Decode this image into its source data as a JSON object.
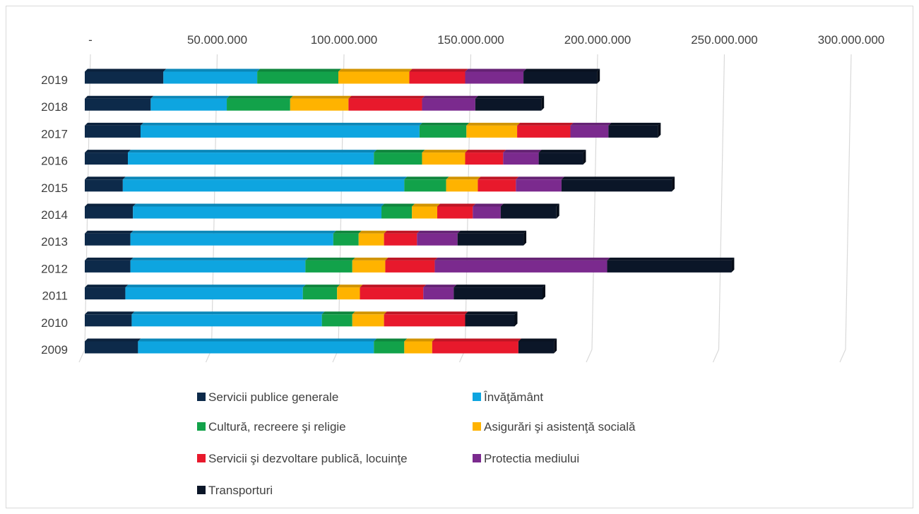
{
  "chart_data": {
    "type": "bar",
    "orientation": "horizontal",
    "stacked": true,
    "categories": [
      "2019",
      "2018",
      "2017",
      "2016",
      "2015",
      "2014",
      "2013",
      "2012",
      "2011",
      "2010",
      "2009"
    ],
    "x_axis": {
      "ticks": [
        0,
        50000000,
        100000000,
        150000000,
        200000000,
        250000000,
        300000000
      ],
      "tick_labels": [
        "-",
        "50.000.000",
        "100.000.000",
        "150.000.000",
        "200.000.000",
        "250.000.000",
        "300.000.000"
      ],
      "range": [
        0,
        300000000
      ],
      "position": "top"
    },
    "grid": true,
    "legend_position": "bottom",
    "series": [
      {
        "name": "Servicii publice generale",
        "color": "#0d2a4a",
        "values": [
          31000000,
          26000000,
          22000000,
          17000000,
          15000000,
          19000000,
          18000000,
          18000000,
          16000000,
          18500000,
          21000000
        ]
      },
      {
        "name": "Învăţământ",
        "color": "#0ea5e0",
        "values": [
          37000000,
          30000000,
          110000000,
          97000000,
          111000000,
          98000000,
          80000000,
          69000000,
          70000000,
          75000000,
          93000000
        ]
      },
      {
        "name": "Cultură, recreere şi religie",
        "color": "#12a24a",
        "values": [
          32000000,
          25000000,
          18500000,
          19000000,
          16500000,
          12000000,
          10000000,
          18500000,
          13500000,
          12000000,
          12000000
        ]
      },
      {
        "name": "Asigurări şi asistenţă socială",
        "color": "#ffb300",
        "values": [
          28000000,
          23000000,
          20000000,
          17000000,
          12500000,
          10000000,
          10000000,
          13000000,
          9000000,
          12500000,
          11000000
        ]
      },
      {
        "name": "Servicii şi dezvoltare publică, locuinţe",
        "color": "#e8192c",
        "values": [
          22000000,
          29000000,
          21000000,
          15000000,
          15000000,
          14000000,
          13000000,
          19500000,
          25000000,
          32000000,
          34000000
        ]
      },
      {
        "name": "Protectia mediului",
        "color": "#7b2a8e",
        "values": [
          23000000,
          21000000,
          15000000,
          14000000,
          18000000,
          11000000,
          16000000,
          68000000,
          12000000,
          0,
          0
        ]
      },
      {
        "name": "Transporturi",
        "color": "#0b1628",
        "values": [
          29000000,
          26000000,
          19500000,
          17500000,
          43500000,
          22000000,
          26000000,
          49000000,
          35000000,
          19500000,
          14000000
        ]
      }
    ]
  }
}
